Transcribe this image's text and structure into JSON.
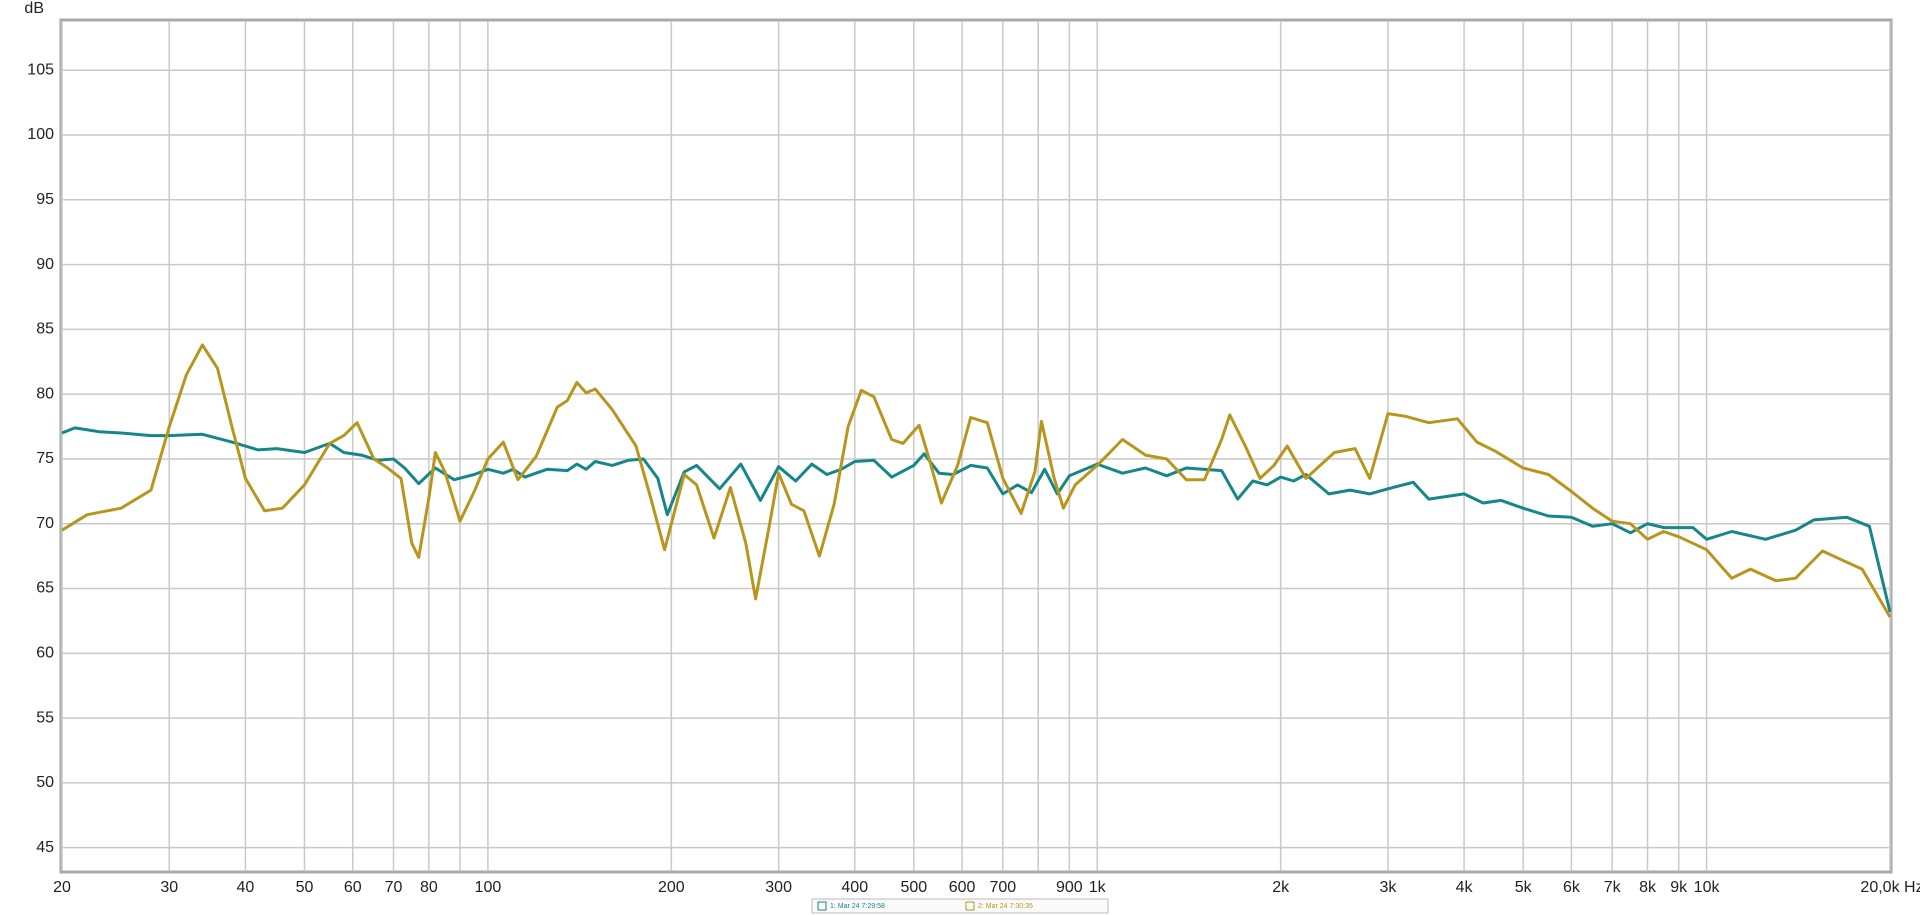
{
  "chart_data": {
    "type": "line",
    "y_label": "dB",
    "xscale": "log",
    "grid": true,
    "xlim": [
      20,
      20000
    ],
    "ylim": [
      43.2,
      108.8
    ],
    "yticks": [
      45,
      50,
      55,
      60,
      65,
      70,
      75,
      80,
      85,
      90,
      95,
      100,
      105
    ],
    "xticks": [
      20,
      30,
      40,
      50,
      60,
      70,
      80,
      100,
      200,
      300,
      400,
      500,
      600,
      700,
      {
        "value": 900,
        "label": "900"
      },
      {
        "value": 1000,
        "label": "1k"
      },
      {
        "value": 2000,
        "label": "2k"
      },
      {
        "value": 3000,
        "label": "3k"
      },
      {
        "value": 4000,
        "label": "4k"
      },
      {
        "value": 5000,
        "label": "5k"
      },
      {
        "value": 6000,
        "label": "6k"
      },
      {
        "value": 7000,
        "label": "7k"
      },
      {
        "value": 8000,
        "label": "8k"
      },
      {
        "value": 9000,
        "label": "9k"
      },
      {
        "value": 10000,
        "label": "10k"
      },
      {
        "value": 20000,
        "label": "20,0k Hz"
      }
    ],
    "xminor": [
      90,
      800
    ],
    "series": [
      {
        "name": "1: Mar 24 7:29:58",
        "color": "#15878a",
        "x": [
          20,
          21,
          23,
          25,
          28,
          30,
          34,
          38,
          42,
          45,
          50,
          55,
          58,
          62,
          66,
          70,
          73,
          77,
          82,
          88,
          95,
          100,
          106,
          110,
          115,
          125,
          135,
          140,
          145,
          150,
          160,
          170,
          180,
          190,
          197,
          210,
          220,
          240,
          260,
          280,
          300,
          320,
          340,
          360,
          380,
          400,
          430,
          460,
          500,
          520,
          550,
          580,
          620,
          660,
          700,
          740,
          780,
          820,
          860,
          900,
          1000,
          1100,
          1200,
          1300,
          1400,
          1600,
          1700,
          1800,
          1900,
          2000,
          2100,
          2200,
          2400,
          2600,
          2800,
          3000,
          3300,
          3500,
          4000,
          4300,
          4600,
          5000,
          5500,
          6000,
          6500,
          7000,
          7500,
          8000,
          8500,
          9500,
          10000,
          11000,
          12500,
          14000,
          15000,
          17000,
          18500,
          20000
        ],
        "values": [
          77,
          77.4,
          77.1,
          77,
          76.8,
          76.8,
          76.9,
          76.3,
          75.7,
          75.8,
          75.5,
          76.2,
          75.5,
          75.3,
          74.9,
          75,
          74.3,
          73.1,
          74.3,
          73.4,
          73.8,
          74.2,
          73.9,
          74.2,
          73.6,
          74.2,
          74.1,
          74.6,
          74.2,
          74.8,
          74.5,
          74.9,
          75,
          73.5,
          70.7,
          74,
          74.5,
          72.7,
          74.6,
          71.8,
          74.4,
          73.3,
          74.6,
          73.8,
          74.2,
          74.8,
          74.9,
          73.6,
          74.5,
          75.4,
          73.9,
          73.8,
          74.5,
          74.3,
          72.3,
          73,
          72.4,
          74.2,
          72.3,
          73.7,
          74.6,
          73.9,
          74.3,
          73.7,
          74.3,
          74.1,
          71.9,
          73.3,
          73,
          73.6,
          73.3,
          73.8,
          72.3,
          72.6,
          72.3,
          72.7,
          73.2,
          71.9,
          72.3,
          71.6,
          71.8,
          71.2,
          70.6,
          70.5,
          69.8,
          70,
          69.3,
          70,
          69.7,
          69.7,
          68.8,
          69.4,
          68.8,
          69.5,
          70.3,
          70.5,
          69.8,
          63.2
        ]
      },
      {
        "name": "2: Mar 24 7:30:35",
        "color": "#b8961e",
        "x": [
          20,
          22,
          25,
          28,
          30,
          32,
          34,
          36,
          38,
          40,
          43,
          46,
          50,
          55,
          58,
          61,
          65,
          68,
          72,
          75,
          77,
          80,
          82,
          85,
          90,
          95,
          100,
          106,
          112,
          120,
          130,
          135,
          140,
          145,
          150,
          160,
          175,
          185,
          195,
          210,
          220,
          235,
          250,
          265,
          275,
          290,
          300,
          315,
          330,
          350,
          370,
          390,
          410,
          430,
          460,
          480,
          510,
          530,
          555,
          590,
          620,
          660,
          700,
          750,
          790,
          810,
          850,
          880,
          920,
          1000,
          1100,
          1200,
          1300,
          1400,
          1500,
          1600,
          1650,
          1750,
          1850,
          1950,
          2050,
          2200,
          2450,
          2650,
          2800,
          3000,
          3200,
          3500,
          3900,
          4200,
          4500,
          5000,
          5500,
          6000,
          6500,
          7000,
          7500,
          8000,
          8500,
          9000,
          10000,
          11000,
          11800,
          13000,
          14000,
          15500,
          16500,
          18000,
          20000
        ],
        "values": [
          69.5,
          70.7,
          71.2,
          72.6,
          77.5,
          81.5,
          83.8,
          82,
          77.5,
          73.5,
          71,
          71.2,
          73,
          76.2,
          76.8,
          77.8,
          75,
          74.4,
          73.5,
          68.5,
          67.4,
          72,
          75.5,
          74,
          70.2,
          72.5,
          75,
          76.3,
          73.4,
          75.2,
          79,
          79.5,
          80.9,
          80.1,
          80.4,
          78.8,
          76,
          72,
          68,
          73.8,
          73,
          68.9,
          72.8,
          68.5,
          64.2,
          70,
          73.9,
          71.5,
          71,
          67.5,
          71.5,
          77.5,
          80.3,
          79.8,
          76.5,
          76.2,
          77.6,
          75,
          71.6,
          74.5,
          78.2,
          77.8,
          73.5,
          70.8,
          74,
          77.9,
          73.5,
          71.2,
          73,
          74.5,
          76.5,
          75.3,
          75,
          73.4,
          73.4,
          76.5,
          78.4,
          76,
          73.5,
          74.5,
          76,
          73.5,
          75.5,
          75.8,
          73.5,
          78.5,
          78.3,
          77.8,
          78.1,
          76.3,
          75.6,
          74.3,
          73.8,
          72.5,
          71.2,
          70.2,
          70,
          68.8,
          69.4,
          69,
          68,
          65.8,
          66.5,
          65.6,
          65.8,
          67.9,
          67.3,
          66.5,
          62.8
        ]
      }
    ]
  }
}
